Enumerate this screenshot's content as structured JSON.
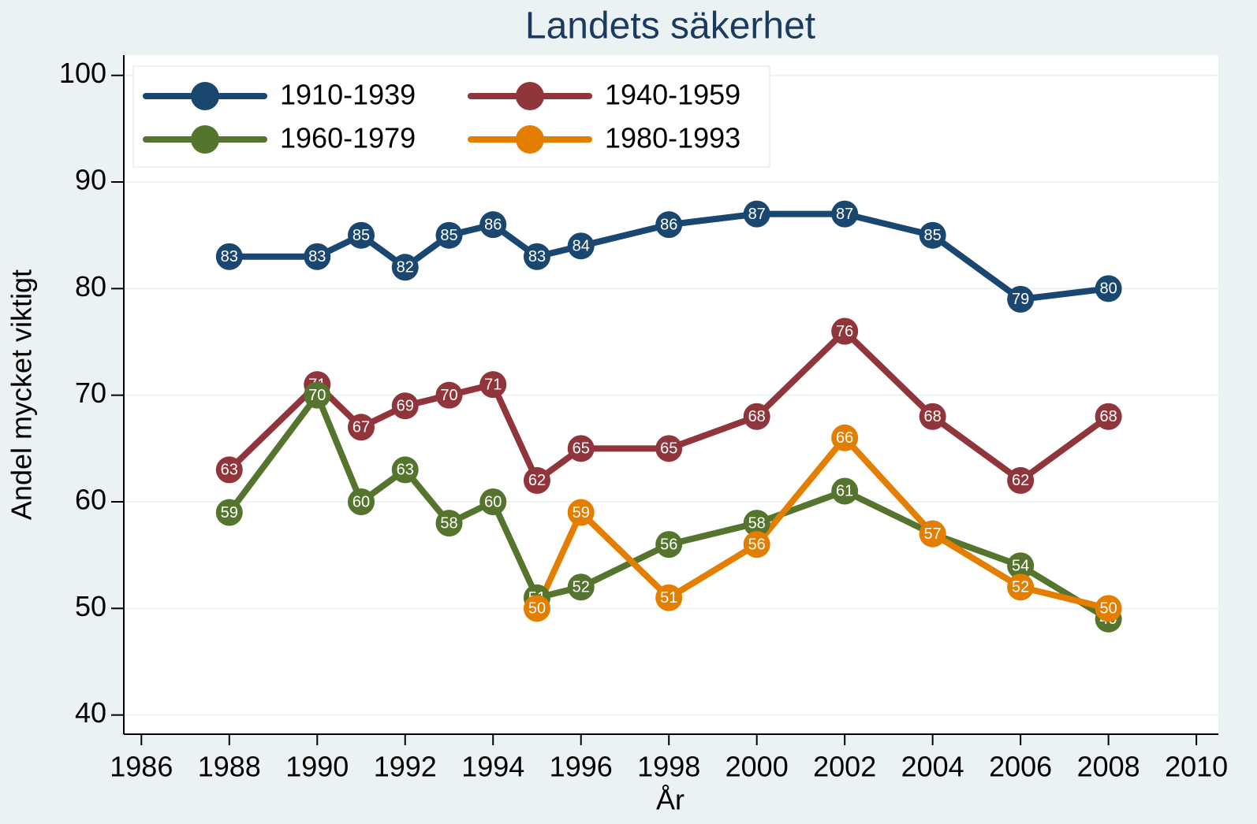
{
  "chart_data": {
    "type": "line",
    "title": "Landets säkerhet",
    "x_label": "År",
    "y_label": "Andel mycket viktigt",
    "x": [
      1988,
      1990,
      1991,
      1992,
      1993,
      1994,
      1995,
      1996,
      1998,
      2000,
      2002,
      2004,
      2006,
      2008
    ],
    "series": [
      {
        "name": "1910-1939",
        "color": "#1a476f",
        "values": [
          83,
          83,
          85,
          82,
          85,
          86,
          83,
          84,
          86,
          87,
          87,
          85,
          79,
          80
        ]
      },
      {
        "name": "1940-1959",
        "color": "#90353b",
        "values": [
          63,
          71,
          67,
          69,
          70,
          71,
          62,
          65,
          65,
          68,
          76,
          68,
          62,
          68
        ]
      },
      {
        "name": "1960-1979",
        "color": "#55752f",
        "values": [
          59,
          70,
          60,
          63,
          58,
          60,
          51,
          52,
          56,
          58,
          61,
          57,
          54,
          49
        ]
      },
      {
        "name": "1980-1993",
        "color": "#e37e00",
        "values": [
          null,
          null,
          null,
          null,
          null,
          null,
          50,
          59,
          51,
          56,
          66,
          57,
          52,
          50
        ]
      }
    ],
    "xlim": [
      1985.6,
      2010.5
    ],
    "xticks": [
      1986,
      1988,
      1990,
      1992,
      1994,
      1996,
      1998,
      2000,
      2002,
      2004,
      2006,
      2008,
      2010
    ],
    "ylim": [
      38.2,
      101.9
    ],
    "yticks": [
      40,
      50,
      60,
      70,
      80,
      90,
      100
    ],
    "grid": true,
    "legend": "top-left"
  }
}
